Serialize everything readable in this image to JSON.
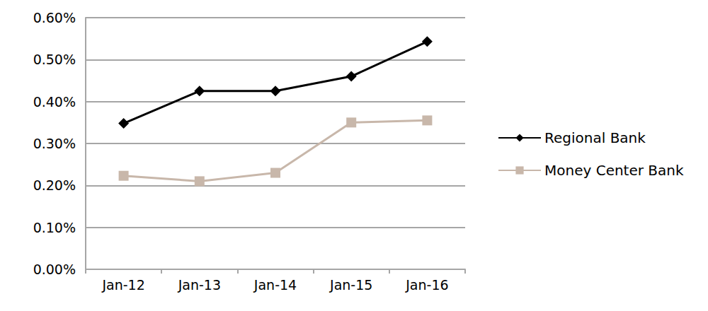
{
  "chart_data": {
    "type": "line",
    "categories": [
      "Jan-12",
      "Jan-13",
      "Jan-14",
      "Jan-15",
      "Jan-16"
    ],
    "series": [
      {
        "name": "Regional Bank",
        "color": "#000000",
        "marker": "diamond",
        "line_style": "solid",
        "values": [
          0.348,
          0.425,
          0.425,
          0.46,
          0.543
        ]
      },
      {
        "name": "Money Center Bank",
        "color": "#c8b7aa",
        "marker": "square",
        "line_style": "solid",
        "values": [
          0.223,
          0.21,
          0.23,
          0.35,
          0.355
        ]
      }
    ],
    "ylim": [
      0,
      0.6
    ],
    "yticks": [
      {
        "value": 0,
        "label": "0.00%"
      },
      {
        "value": 0.1,
        "label": "0.10%"
      },
      {
        "value": 0.2,
        "label": "0.20%"
      },
      {
        "value": 0.3,
        "label": "0.30%"
      },
      {
        "value": 0.4,
        "label": "0.40%"
      },
      {
        "value": 0.5,
        "label": "0.50%"
      },
      {
        "value": 0.6,
        "label": "0.60%"
      }
    ],
    "grid": true,
    "legend": "right"
  }
}
